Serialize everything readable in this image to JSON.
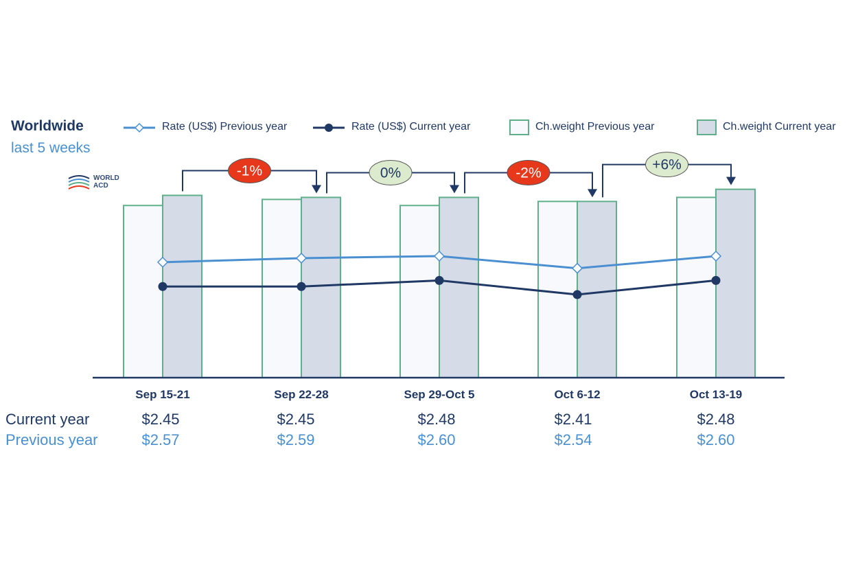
{
  "title": "Worldwide",
  "subtitle": "last 5 weeks",
  "logo_text": [
    "WORLD",
    "ACD"
  ],
  "legend": [
    {
      "label": "Rate (US$) Previous year",
      "icon": "line-diamond-icon",
      "color": "#4a8fd0"
    },
    {
      "label": "Rate (US$) Current year",
      "icon": "line-dot-icon",
      "color": "#1f3864"
    },
    {
      "label": "Ch.weight Previous year",
      "icon": "bar-outline-icon",
      "color": "#5fb08a"
    },
    {
      "label": "Ch.weight Current year",
      "icon": "bar-filled-icon",
      "color": "#5fb08a"
    }
  ],
  "colors": {
    "dark_blue": "#1f3864",
    "light_blue": "#4a8fd0",
    "bar_border": "#5fb08a",
    "bar_prev_fill": "#f7f9fc",
    "bar_cur_fill": "#d5dce8",
    "badge_red": "#e8381b",
    "badge_green": "#dceacd"
  },
  "rows": {
    "current_label": "Current year",
    "previous_label": "Previous year"
  },
  "chart_data": {
    "type": "bar",
    "title": "Worldwide",
    "subtitle": "last 5 weeks",
    "categories": [
      "Sep 15-21",
      "Sep 22-28",
      "Sep 29-Oct 5",
      "Oct 6-12",
      "Oct 13-19"
    ],
    "bar_ylim": [
      0,
      100
    ],
    "rate_ylim": [
      2.0,
      3.0
    ],
    "series": [
      {
        "name": "Ch.weight Previous year",
        "kind": "bar",
        "values": [
          85,
          88,
          85,
          87,
          89
        ]
      },
      {
        "name": "Ch.weight Current year",
        "kind": "bar",
        "values": [
          90,
          89,
          89,
          87,
          93
        ]
      },
      {
        "name": "Rate (US$) Previous year",
        "kind": "line",
        "values": [
          2.57,
          2.59,
          2.6,
          2.54,
          2.6
        ]
      },
      {
        "name": "Rate (US$) Current year",
        "kind": "line",
        "values": [
          2.45,
          2.45,
          2.48,
          2.41,
          2.48
        ]
      }
    ],
    "current_year_labels": [
      "$2.45",
      "$2.45",
      "$2.48",
      "$2.41",
      "$2.48"
    ],
    "previous_year_labels": [
      "$2.57",
      "$2.59",
      "$2.60",
      "$2.54",
      "$2.60"
    ],
    "changes": [
      {
        "label": "-1%",
        "color": "#e8381b",
        "text_color": "#ffffff"
      },
      {
        "label": "0%",
        "color": "#dceacd",
        "text_color": "#1f3864"
      },
      {
        "label": "-2%",
        "color": "#e8381b",
        "text_color": "#ffffff"
      },
      {
        "label": "+6%",
        "color": "#dceacd",
        "text_color": "#1f3864"
      }
    ]
  }
}
